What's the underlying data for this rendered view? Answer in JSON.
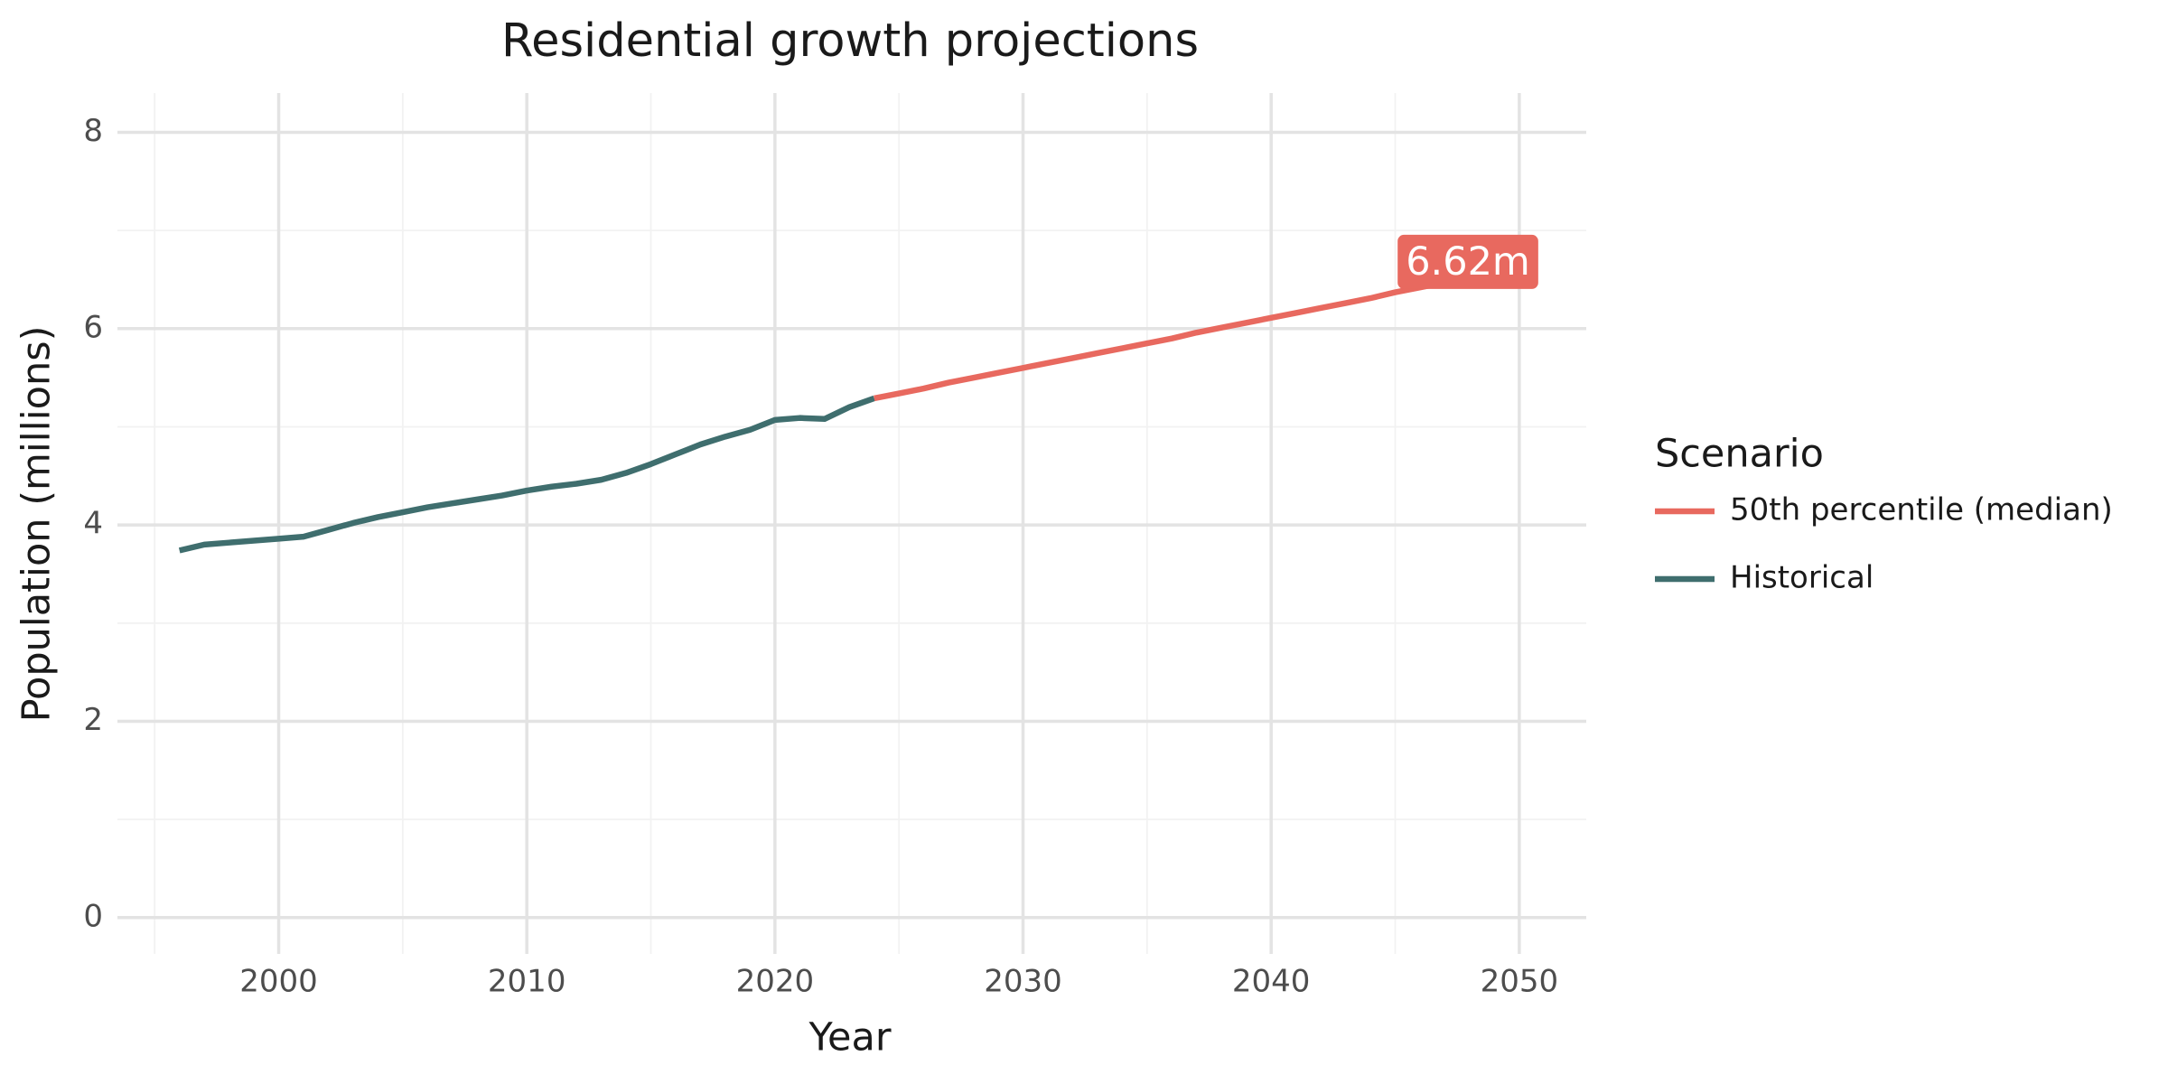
{
  "chart_data": {
    "type": "line",
    "title": "Residential growth projections",
    "x_label": "Year",
    "y_label": "Population (millions)",
    "legend_title": "Scenario",
    "legend_position": "right",
    "grid": true,
    "xlim": [
      1993.5,
      2052.7
    ],
    "ylim": [
      -0.37,
      8.4
    ],
    "xticks": [
      2000,
      2010,
      2020,
      2030,
      2040,
      2050
    ],
    "yticks": [
      0,
      2,
      4,
      6,
      8
    ],
    "minor_xticks": [
      1995,
      2005,
      2015,
      2025,
      2035,
      2045
    ],
    "minor_yticks": [
      1,
      3,
      5,
      7
    ],
    "series": [
      {
        "name": "50th percentile (median)",
        "color": "#E8695F",
        "x": [
          2024,
          2025,
          2026,
          2027,
          2028,
          2029,
          2030,
          2031,
          2032,
          2033,
          2034,
          2035,
          2036,
          2037,
          2038,
          2039,
          2040,
          2041,
          2042,
          2043,
          2044,
          2045,
          2046,
          2047,
          2048,
          2049,
          2050
        ],
        "values": [
          5.29,
          5.34,
          5.39,
          5.45,
          5.5,
          5.55,
          5.6,
          5.65,
          5.7,
          5.75,
          5.8,
          5.85,
          5.9,
          5.96,
          6.01,
          6.06,
          6.11,
          6.16,
          6.21,
          6.26,
          6.31,
          6.37,
          6.42,
          6.47,
          6.52,
          6.57,
          6.62
        ],
        "value_labels": [
          null,
          null,
          null,
          null,
          null,
          null,
          null,
          null,
          null,
          null,
          null,
          null,
          null,
          null,
          null,
          null,
          null,
          null,
          null,
          null,
          null,
          null,
          null,
          null,
          null,
          null,
          "6.62m"
        ]
      },
      {
        "name": "Historical",
        "color": "#3F6E6E",
        "x": [
          1996,
          1997,
          1998,
          1999,
          2000,
          2001,
          2002,
          2003,
          2004,
          2005,
          2006,
          2007,
          2008,
          2009,
          2010,
          2011,
          2012,
          2013,
          2014,
          2015,
          2016,
          2017,
          2018,
          2019,
          2020,
          2021,
          2022,
          2023,
          2024
        ],
        "values": [
          3.74,
          3.8,
          3.82,
          3.84,
          3.86,
          3.88,
          3.95,
          4.02,
          4.08,
          4.13,
          4.18,
          4.22,
          4.26,
          4.3,
          4.35,
          4.39,
          4.42,
          4.46,
          4.53,
          4.62,
          4.72,
          4.82,
          4.9,
          4.97,
          5.07,
          5.09,
          5.08,
          5.2,
          5.29
        ]
      }
    ]
  }
}
